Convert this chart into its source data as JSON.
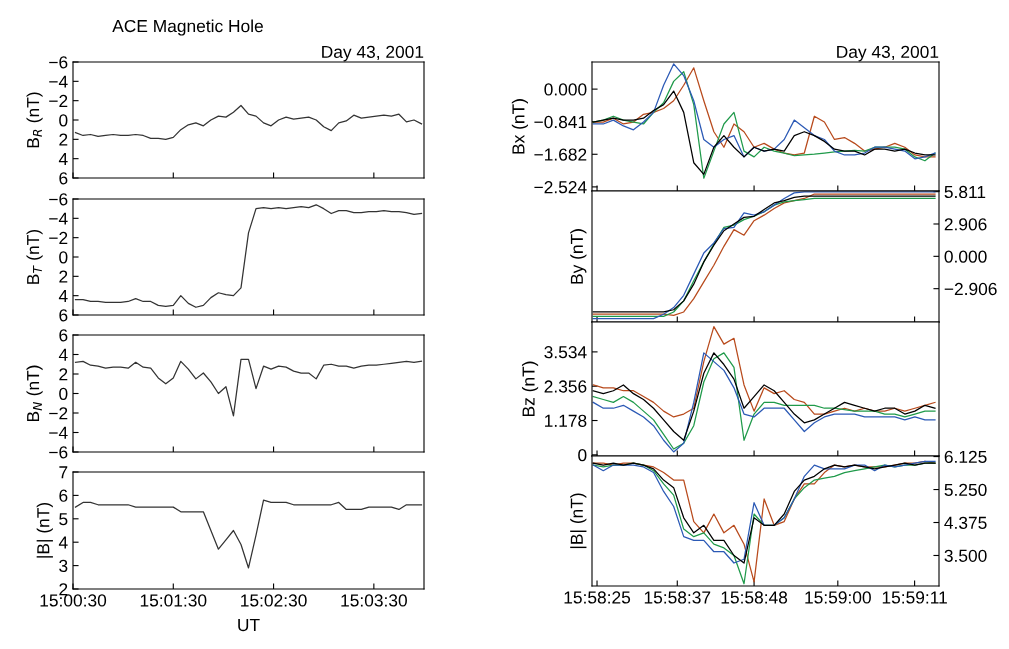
{
  "chart_data": [
    {
      "type": "line",
      "title": "ACE Magnetic Hole",
      "subtitle": "Day 43, 2001",
      "ylabel": "B$_{R}$ (nT)",
      "tick_labels": "y",
      "x": [
        15.00875,
        15.01,
        15.01125,
        15.0125,
        15.01375,
        15.015,
        15.01625,
        15.0175,
        15.01875,
        15.02,
        15.02125,
        15.0225,
        15.02375,
        15.025,
        15.02625,
        15.0275,
        15.02875,
        15.03,
        15.03125,
        15.0325,
        15.03375,
        15.035,
        15.03625,
        15.0375,
        15.03875,
        15.04,
        15.04125,
        15.0425,
        15.04375,
        15.045,
        15.04625,
        15.0475,
        15.04875,
        15.05,
        15.05125,
        15.0525,
        15.05375,
        15.055,
        15.05625,
        15.0575,
        15.05875,
        15.06,
        15.06125,
        15.0625,
        15.06375,
        15.065,
        15.06625
      ],
      "xlim": [
        15.008333,
        15.066667
      ],
      "xticks": [
        {
          "value": 15.008333,
          "label": null
        },
        {
          "value": 15.025,
          "label": null
        },
        {
          "value": 15.041667,
          "label": null
        },
        {
          "value": 15.058333,
          "label": null
        }
      ],
      "ylim": [
        6,
        -6
      ],
      "yticks": [
        {
          "value": -6,
          "label": "−6"
        },
        {
          "value": -4,
          "label": "−4"
        },
        {
          "value": -2,
          "label": "−2"
        },
        0,
        2,
        4,
        6
      ],
      "series": [
        {
          "color": "#333333",
          "values": [
            1.3,
            1.6,
            1.5,
            1.7,
            1.6,
            1.5,
            1.6,
            1.6,
            1.5,
            1.6,
            1.9,
            1.9,
            2.0,
            1.8,
            1.0,
            0.5,
            0.3,
            0.6,
            0.0,
            -0.4,
            -0.3,
            -0.8,
            -1.5,
            -0.6,
            -0.4,
            0.3,
            0.6,
            0.0,
            -0.3,
            -0.1,
            -0.2,
            -0.3,
            0.0,
            0.7,
            1.1,
            0.3,
            0.1,
            -0.5,
            -0.2,
            -0.3,
            -0.4,
            -0.5,
            -0.4,
            -0.6,
            0.2,
            0.0,
            0.4
          ]
        }
      ]
    },
    {
      "type": "line",
      "ylabel": "B$_{T}$ (nT)",
      "tick_labels": "y",
      "x": [
        15.00875,
        15.01,
        15.01125,
        15.0125,
        15.01375,
        15.015,
        15.01625,
        15.0175,
        15.01875,
        15.02,
        15.02125,
        15.0225,
        15.02375,
        15.025,
        15.02625,
        15.0275,
        15.02875,
        15.03,
        15.03125,
        15.0325,
        15.03375,
        15.035,
        15.03625,
        15.0375,
        15.03875,
        15.04,
        15.04125,
        15.0425,
        15.04375,
        15.045,
        15.04625,
        15.0475,
        15.04875,
        15.05,
        15.05125,
        15.0525,
        15.05375,
        15.055,
        15.05625,
        15.0575,
        15.05875,
        15.06,
        15.06125,
        15.0625,
        15.06375,
        15.065,
        15.06625
      ],
      "xlim": [
        15.008333,
        15.066667
      ],
      "xticks": [
        {
          "value": 15.008333,
          "label": null
        },
        {
          "value": 15.025,
          "label": null
        },
        {
          "value": 15.041667,
          "label": null
        },
        {
          "value": 15.058333,
          "label": null
        }
      ],
      "ylim": [
        6,
        -6
      ],
      "yticks": [
        {
          "value": -6,
          "label": "−6"
        },
        {
          "value": -4,
          "label": "−4"
        },
        {
          "value": -2,
          "label": "−2"
        },
        0,
        2,
        4,
        6
      ],
      "series": [
        {
          "color": "#333333",
          "values": [
            4.4,
            4.4,
            4.6,
            4.6,
            4.7,
            4.7,
            4.7,
            4.6,
            4.3,
            4.6,
            4.6,
            5.0,
            5.1,
            5.0,
            4.0,
            4.8,
            5.2,
            5.0,
            4.2,
            3.7,
            3.9,
            4.0,
            3.2,
            -2.5,
            -5.0,
            -5.1,
            -5.0,
            -5.1,
            -5.0,
            -5.1,
            -5.2,
            -5.1,
            -5.4,
            -5.0,
            -4.5,
            -4.8,
            -4.8,
            -4.6,
            -4.6,
            -4.7,
            -4.7,
            -4.8,
            -4.7,
            -4.7,
            -4.6,
            -4.4,
            -4.5
          ]
        }
      ]
    },
    {
      "type": "line",
      "ylabel": "B$_{N}$ (nT)",
      "tick_labels": "y",
      "x": [
        15.00875,
        15.01,
        15.01125,
        15.0125,
        15.01375,
        15.015,
        15.01625,
        15.0175,
        15.01875,
        15.02,
        15.02125,
        15.0225,
        15.02375,
        15.025,
        15.02625,
        15.0275,
        15.02875,
        15.03,
        15.03125,
        15.0325,
        15.03375,
        15.035,
        15.03625,
        15.0375,
        15.03875,
        15.04,
        15.04125,
        15.0425,
        15.04375,
        15.045,
        15.04625,
        15.0475,
        15.04875,
        15.05,
        15.05125,
        15.0525,
        15.05375,
        15.055,
        15.05625,
        15.0575,
        15.05875,
        15.06,
        15.06125,
        15.0625,
        15.06375,
        15.065,
        15.06625
      ],
      "xlim": [
        15.008333,
        15.066667
      ],
      "xticks": [
        {
          "value": 15.008333,
          "label": null
        },
        {
          "value": 15.025,
          "label": null
        },
        {
          "value": 15.041667,
          "label": null
        },
        {
          "value": 15.058333,
          "label": null
        }
      ],
      "ylim": [
        -6,
        6
      ],
      "yticks": [
        {
          "value": -6,
          "label": "−6"
        },
        {
          "value": -4,
          "label": "−4"
        },
        {
          "value": -2,
          "label": "−2"
        },
        0,
        2,
        4,
        6
      ],
      "series": [
        {
          "color": "#333333",
          "values": [
            3.2,
            3.3,
            2.9,
            2.8,
            2.6,
            2.7,
            2.7,
            2.6,
            3.2,
            2.7,
            2.6,
            1.6,
            1.0,
            1.6,
            3.3,
            2.5,
            1.5,
            2.1,
            1.2,
            0.0,
            0.7,
            -2.3,
            3.5,
            3.5,
            0.5,
            2.8,
            2.5,
            2.8,
            2.7,
            2.3,
            2.1,
            2.1,
            1.5,
            2.9,
            3.0,
            2.8,
            2.8,
            2.6,
            2.8,
            2.9,
            2.9,
            3.0,
            3.1,
            3.2,
            3.3,
            3.2,
            3.3
          ]
        }
      ]
    },
    {
      "type": "line",
      "ylabel": "|B| (nT)",
      "xlabel": "UT",
      "x": [
        15.00875,
        15.01,
        15.01125,
        15.0125,
        15.01375,
        15.015,
        15.01625,
        15.0175,
        15.01875,
        15.02,
        15.02125,
        15.0225,
        15.02375,
        15.025,
        15.02625,
        15.0275,
        15.02875,
        15.03,
        15.03125,
        15.0325,
        15.03375,
        15.035,
        15.03625,
        15.0375,
        15.03875,
        15.04,
        15.04125,
        15.0425,
        15.04375,
        15.045,
        15.04625,
        15.0475,
        15.04875,
        15.05,
        15.05125,
        15.0525,
        15.05375,
        15.055,
        15.05625,
        15.0575,
        15.05875,
        15.06,
        15.06125,
        15.0625,
        15.06375,
        15.065,
        15.06625
      ],
      "xlim": [
        15.008333,
        15.066667
      ],
      "xticks": [
        {
          "value": 15.008333,
          "label": "15:00:30"
        },
        {
          "value": 15.025,
          "label": "15:01:30"
        },
        {
          "value": 15.041667,
          "label": "15:02:30"
        },
        {
          "value": 15.058333,
          "label": "15:03:30"
        }
      ],
      "ylim": [
        2,
        7
      ],
      "yticks": [
        2,
        3,
        4,
        5,
        6,
        7
      ],
      "series": [
        {
          "color": "#333333",
          "values": [
            5.5,
            5.7,
            5.7,
            5.6,
            5.6,
            5.6,
            5.6,
            5.6,
            5.5,
            5.5,
            5.5,
            5.5,
            5.5,
            5.5,
            5.3,
            5.3,
            5.3,
            5.3,
            4.5,
            3.7,
            4.1,
            4.5,
            3.9,
            2.9,
            4.3,
            5.8,
            5.7,
            5.7,
            5.7,
            5.6,
            5.6,
            5.6,
            5.6,
            5.6,
            5.6,
            5.7,
            5.4,
            5.4,
            5.4,
            5.5,
            5.5,
            5.5,
            5.5,
            5.4,
            5.6,
            5.6,
            5.6
          ]
        }
      ]
    },
    {
      "type": "line",
      "subtitle": "Day 43, 2001",
      "ylabel": "Bx (nT)",
      "tick_labels": "y",
      "x": [
        15.9736,
        15.974,
        15.9744,
        15.9748,
        15.9752,
        15.9756,
        15.976,
        15.9764,
        15.9768,
        15.9772,
        15.9776,
        15.978,
        15.9784,
        15.9788,
        15.9792,
        15.9796,
        15.98,
        15.9804,
        15.9808,
        15.9812,
        15.9816,
        15.982,
        15.9824,
        15.9828,
        15.9832,
        15.9836,
        15.984,
        15.9844,
        15.9848,
        15.9852,
        15.9856,
        15.986,
        15.9864,
        15.9868,
        15.9872
      ],
      "xlim": [
        15.97355,
        15.98736
      ],
      "xticks": [
        {
          "value": 15.97375,
          "label": null
        },
        {
          "value": 15.976944,
          "label": null
        },
        {
          "value": 15.98,
          "label": null
        },
        {
          "value": 15.983333,
          "label": null
        },
        {
          "value": 15.986389,
          "label": null
        }
      ],
      "ylim": [
        -2.63,
        0.7
      ],
      "yticks": [
        {
          "value": 0,
          "label": "0.000"
        },
        {
          "value": -0.841,
          "label": "−0.841"
        },
        {
          "value": -1.682,
          "label": "−1.682"
        },
        {
          "value": -2.524,
          "label": "−2.524"
        }
      ],
      "series": [
        {
          "color": "#b84a1c",
          "values": [
            -0.85,
            -0.85,
            -0.75,
            -0.9,
            -0.85,
            -0.65,
            -0.6,
            -0.5,
            -0.3,
            0.1,
            0.55,
            -0.3,
            -1.1,
            -1.5,
            -0.9,
            -1.1,
            -1.5,
            -1.4,
            -1.55,
            -1.65,
            -1.7,
            -1.65,
            -0.7,
            -0.85,
            -1.3,
            -1.25,
            -1.4,
            -1.6,
            -1.55,
            -1.5,
            -1.4,
            -1.5,
            -1.7,
            -1.75,
            -1.75
          ]
        },
        {
          "color": "#1f9a4a",
          "values": [
            -0.85,
            -0.8,
            -0.7,
            -0.8,
            -0.85,
            -0.9,
            -0.6,
            -0.35,
            0.2,
            0.45,
            -0.4,
            -2.3,
            -1.6,
            -0.9,
            -0.6,
            -1.6,
            -1.75,
            -1.5,
            -1.6,
            -1.65,
            -1.72,
            -1.7,
            -1.68,
            -1.65,
            -1.62,
            -1.6,
            -1.58,
            -1.6,
            -1.5,
            -1.5,
            -1.5,
            -1.55,
            -1.75,
            -1.85,
            -1.65
          ]
        },
        {
          "color": "#2b59b5",
          "values": [
            -0.9,
            -0.9,
            -0.8,
            -0.95,
            -1.05,
            -0.85,
            -0.6,
            0.1,
            0.65,
            0.35,
            -0.3,
            -1.3,
            -1.5,
            -1.3,
            -1.2,
            -1.75,
            -1.5,
            -1.6,
            -1.55,
            -1.3,
            -0.8,
            -1.0,
            -1.2,
            -1.3,
            -1.6,
            -1.7,
            -1.7,
            -1.65,
            -1.5,
            -1.5,
            -1.55,
            -1.6,
            -1.8,
            -1.75,
            -1.65
          ]
        },
        {
          "color": "#000000",
          "values": [
            -0.85,
            -0.8,
            -0.75,
            -0.8,
            -0.8,
            -0.75,
            -0.55,
            -0.4,
            -0.05,
            -0.6,
            -1.9,
            -2.2,
            -1.5,
            -1.2,
            -1.5,
            -1.75,
            -1.5,
            -1.6,
            -1.55,
            -1.6,
            -1.2,
            -1.1,
            -1.2,
            -1.35,
            -1.55,
            -1.6,
            -1.6,
            -1.7,
            -1.55,
            -1.55,
            -1.6,
            -1.55,
            -1.65,
            -1.7,
            -1.7
          ]
        }
      ]
    },
    {
      "type": "line",
      "ylabel": "By (nT)",
      "tick_labels": "y",
      "x": [
        15.9736,
        15.974,
        15.9744,
        15.9748,
        15.9752,
        15.9756,
        15.976,
        15.9764,
        15.9768,
        15.9772,
        15.9776,
        15.978,
        15.9784,
        15.9788,
        15.9792,
        15.9796,
        15.98,
        15.9804,
        15.9808,
        15.9812,
        15.9816,
        15.982,
        15.9824,
        15.9828,
        15.9832,
        15.9836,
        15.984,
        15.9844,
        15.9848,
        15.9852,
        15.9856,
        15.986,
        15.9864,
        15.9868,
        15.9872
      ],
      "xlim": [
        15.97355,
        15.98736
      ],
      "xticks": [
        {
          "value": 15.97375,
          "label": null
        },
        {
          "value": 15.976944,
          "label": null
        },
        {
          "value": 15.98,
          "label": null
        },
        {
          "value": 15.983333,
          "label": null
        },
        {
          "value": 15.986389,
          "label": null
        }
      ],
      "y2lim": [
        -5.9,
        5.87
      ],
      "y2ticks": [
        {
          "value": 5.811,
          "label": "5.811"
        },
        {
          "value": 2.906,
          "label": "2.906"
        },
        {
          "value": 0,
          "label": "0.000"
        },
        {
          "value": -2.906,
          "label": "−2.906"
        }
      ],
      "series": [
        {
          "axis": "y2",
          "color": "#b84a1c",
          "values": [
            -5.2,
            -5.2,
            -5.2,
            -5.2,
            -5.2,
            -5.2,
            -5.2,
            -5.2,
            -5.3,
            -5.0,
            -3.8,
            -2.3,
            -0.8,
            0.9,
            2.4,
            1.9,
            3.2,
            3.7,
            4.3,
            4.8,
            5.0,
            5.2,
            5.6,
            5.6,
            5.6,
            5.6,
            5.6,
            5.6,
            5.6,
            5.6,
            5.6,
            5.6,
            5.6,
            5.6,
            5.6
          ]
        },
        {
          "axis": "y2",
          "color": "#1f9a4a",
          "values": [
            -5.4,
            -5.4,
            -5.4,
            -5.4,
            -5.4,
            -5.4,
            -5.4,
            -5.4,
            -5.0,
            -4.0,
            -2.2,
            -0.5,
            1.1,
            2.6,
            2.8,
            3.3,
            3.6,
            4.0,
            4.6,
            4.9,
            5.0,
            5.1,
            5.2,
            5.2,
            5.2,
            5.2,
            5.2,
            5.2,
            5.2,
            5.2,
            5.2,
            5.2,
            5.2,
            5.2,
            5.2
          ]
        },
        {
          "axis": "y2",
          "color": "#2b59b5",
          "values": [
            -5.6,
            -5.6,
            -5.6,
            -5.6,
            -5.6,
            -5.6,
            -5.6,
            -5.2,
            -4.6,
            -3.5,
            -1.6,
            0.3,
            1.2,
            2.5,
            2.6,
            3.9,
            3.7,
            4.0,
            4.6,
            5.2,
            5.7,
            5.8,
            5.8,
            5.8,
            5.8,
            5.8,
            5.8,
            5.8,
            5.8,
            5.8,
            5.8,
            5.8,
            5.8,
            5.8,
            5.8
          ]
        },
        {
          "axis": "y2",
          "color": "#000000",
          "values": [
            -5.0,
            -5.0,
            -5.0,
            -5.0,
            -5.0,
            -5.0,
            -5.0,
            -5.0,
            -4.8,
            -4.0,
            -2.5,
            -0.5,
            1.0,
            2.3,
            2.9,
            3.5,
            3.6,
            4.2,
            4.8,
            5.0,
            5.3,
            5.4,
            5.4,
            5.4,
            5.4,
            5.4,
            5.4,
            5.4,
            5.4,
            5.4,
            5.4,
            5.4,
            5.4,
            5.4,
            5.4
          ]
        }
      ]
    },
    {
      "type": "line",
      "ylabel": "Bz (nT)",
      "tick_labels": "y",
      "x": [
        15.9736,
        15.974,
        15.9744,
        15.9748,
        15.9752,
        15.9756,
        15.976,
        15.9764,
        15.9768,
        15.9772,
        15.9776,
        15.978,
        15.9784,
        15.9788,
        15.9792,
        15.9796,
        15.98,
        15.9804,
        15.9808,
        15.9812,
        15.9816,
        15.982,
        15.9824,
        15.9828,
        15.9832,
        15.9836,
        15.984,
        15.9844,
        15.9848,
        15.9852,
        15.9856,
        15.986,
        15.9864,
        15.9868,
        15.9872
      ],
      "xlim": [
        15.97355,
        15.98736
      ],
      "xticks": [
        {
          "value": 15.97375,
          "label": null
        },
        {
          "value": 15.976944,
          "label": null
        },
        {
          "value": 15.98,
          "label": null
        },
        {
          "value": 15.983333,
          "label": null
        },
        {
          "value": 15.986389,
          "label": null
        }
      ],
      "ylim": [
        -0.04,
        4.56
      ],
      "yticks": [
        {
          "value": 3.534,
          "label": "3.534"
        },
        {
          "value": 2.356,
          "label": "2.356"
        },
        {
          "value": 1.178,
          "label": "1.178"
        },
        0
      ],
      "series": [
        {
          "color": "#b84a1c",
          "values": [
            2.4,
            2.3,
            2.3,
            2.2,
            2.2,
            2.0,
            1.8,
            1.5,
            1.3,
            1.4,
            1.6,
            3.2,
            4.4,
            3.8,
            4.0,
            2.4,
            1.5,
            2.3,
            2.1,
            2.2,
            1.9,
            1.8,
            1.4,
            1.4,
            1.5,
            1.6,
            1.5,
            1.6,
            1.5,
            1.5,
            1.6,
            1.5,
            1.6,
            1.7,
            1.8
          ]
        },
        {
          "color": "#1f9a4a",
          "values": [
            2.0,
            1.9,
            1.8,
            2.0,
            1.8,
            1.5,
            1.2,
            0.7,
            0.2,
            0.4,
            1.0,
            2.5,
            3.3,
            3.5,
            3.0,
            0.5,
            1.4,
            1.8,
            1.8,
            1.7,
            1.7,
            1.7,
            1.7,
            1.6,
            1.6,
            1.55,
            1.5,
            1.5,
            1.5,
            1.4,
            1.4,
            1.3,
            1.4,
            1.5,
            1.5
          ]
        },
        {
          "color": "#2b59b5",
          "values": [
            1.8,
            1.6,
            1.6,
            1.7,
            1.5,
            1.3,
            1.0,
            0.5,
            0.1,
            0.4,
            1.8,
            3.5,
            3.2,
            2.9,
            2.3,
            1.4,
            1.3,
            1.6,
            1.6,
            1.6,
            1.2,
            0.8,
            1.1,
            1.3,
            1.4,
            1.4,
            1.4,
            1.3,
            1.3,
            1.3,
            1.3,
            1.2,
            1.3,
            1.2,
            1.2
          ]
        },
        {
          "color": "#000000",
          "values": [
            2.2,
            2.1,
            2.2,
            2.4,
            2.1,
            1.9,
            1.6,
            1.2,
            0.8,
            0.5,
            1.5,
            2.8,
            3.5,
            3.1,
            2.6,
            1.6,
            2.0,
            2.4,
            2.2,
            1.8,
            1.4,
            1.1,
            1.2,
            1.4,
            1.6,
            1.8,
            1.7,
            1.6,
            1.5,
            1.6,
            1.6,
            1.4,
            1.5,
            1.7,
            1.6
          ]
        }
      ]
    },
    {
      "type": "line",
      "ylabel": "|B| (nT)",
      "x": [
        15.9736,
        15.974,
        15.9744,
        15.9748,
        15.9752,
        15.9756,
        15.976,
        15.9764,
        15.9768,
        15.9772,
        15.9776,
        15.978,
        15.9784,
        15.9788,
        15.9792,
        15.9796,
        15.98,
        15.9804,
        15.9808,
        15.9812,
        15.9816,
        15.982,
        15.9824,
        15.9828,
        15.9832,
        15.9836,
        15.984,
        15.9844,
        15.9848,
        15.9852,
        15.9856,
        15.986,
        15.9864,
        15.9868,
        15.9872
      ],
      "xlim": [
        15.97355,
        15.98736
      ],
      "xticks": [
        {
          "value": 15.97375,
          "label": "15:58:25"
        },
        {
          "value": 15.976944,
          "label": "15:58:37"
        },
        {
          "value": 15.98,
          "label": "15:58:48"
        },
        {
          "value": 15.983333,
          "label": "15:59:00"
        },
        {
          "value": 15.986389,
          "label": "15:59:11"
        }
      ],
      "y2lim": [
        2.69,
        6.14
      ],
      "y2ticks": [
        {
          "value": 6.125,
          "label": "6.125"
        },
        {
          "value": 5.25,
          "label": "5.250"
        },
        {
          "value": 4.375,
          "label": "4.375"
        },
        {
          "value": 3.5,
          "label": "3.500"
        }
      ],
      "series": [
        {
          "axis": "y2",
          "color": "#b84a1c",
          "values": [
            5.95,
            5.95,
            5.9,
            5.95,
            5.95,
            5.9,
            5.85,
            5.7,
            5.5,
            5.5,
            4.4,
            4.1,
            4.6,
            4.1,
            4.3,
            3.8,
            2.8,
            5.0,
            4.3,
            4.4,
            5.0,
            5.4,
            5.4,
            5.7,
            5.9,
            5.85,
            5.9,
            5.85,
            5.85,
            5.85,
            5.9,
            5.95,
            5.95,
            6.0,
            5.95
          ]
        },
        {
          "axis": "y2",
          "color": "#1f9a4a",
          "values": [
            5.9,
            5.85,
            5.9,
            5.9,
            5.95,
            5.9,
            5.75,
            5.4,
            5.1,
            4.2,
            4.0,
            4.1,
            3.8,
            3.7,
            3.5,
            2.75,
            4.6,
            4.3,
            4.3,
            4.5,
            5.0,
            5.3,
            5.5,
            5.55,
            5.6,
            5.7,
            5.75,
            5.8,
            5.85,
            5.9,
            5.85,
            5.9,
            5.9,
            5.95,
            5.95
          ]
        },
        {
          "axis": "y2",
          "color": "#2b59b5",
          "values": [
            5.9,
            5.75,
            5.9,
            5.9,
            5.9,
            5.85,
            5.7,
            5.2,
            4.8,
            4.0,
            3.9,
            3.9,
            3.6,
            3.6,
            3.3,
            3.4,
            4.9,
            4.3,
            4.3,
            4.5,
            5.0,
            5.6,
            5.9,
            5.8,
            5.8,
            5.8,
            5.9,
            5.9,
            5.75,
            5.9,
            5.85,
            5.9,
            5.95,
            6.0,
            6.0
          ]
        },
        {
          "axis": "y2",
          "color": "#000000",
          "values": [
            5.95,
            5.9,
            5.95,
            5.9,
            5.95,
            5.9,
            5.8,
            5.5,
            5.3,
            4.5,
            4.1,
            4.3,
            3.9,
            3.9,
            3.5,
            3.3,
            4.5,
            4.3,
            4.3,
            4.6,
            5.2,
            5.5,
            5.6,
            5.8,
            5.9,
            5.85,
            5.9,
            5.85,
            5.8,
            5.85,
            5.9,
            5.95,
            5.9,
            5.95,
            5.95
          ]
        }
      ]
    }
  ]
}
